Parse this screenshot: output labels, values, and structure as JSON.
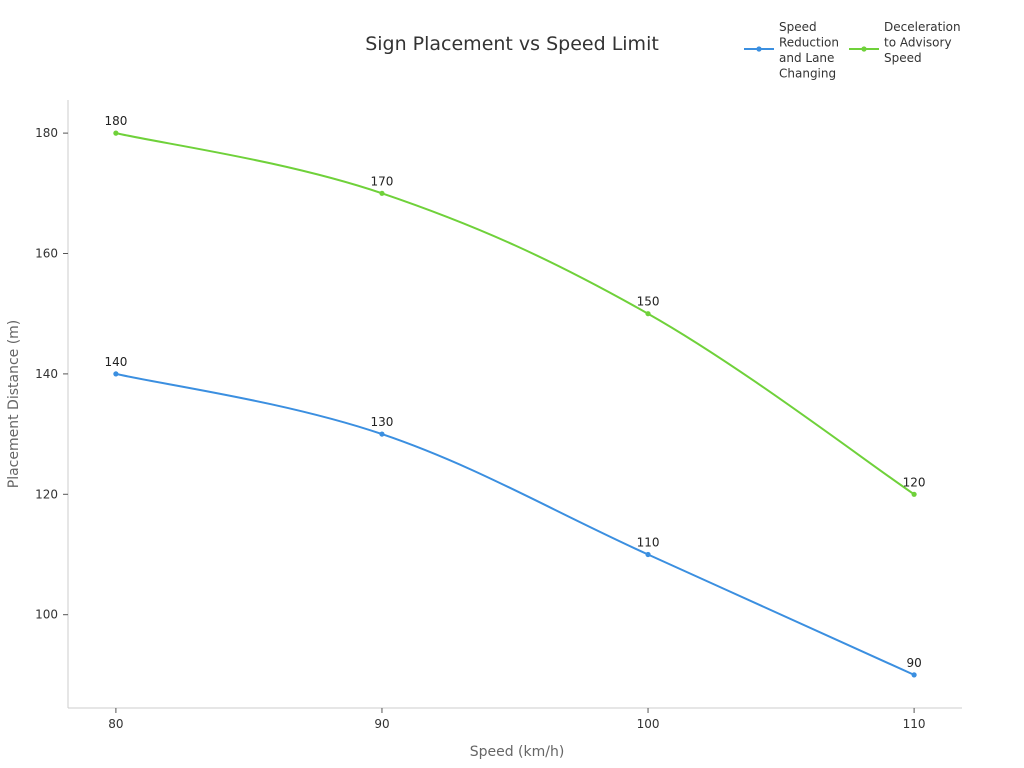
{
  "chart_data": {
    "type": "line",
    "title": "Sign Placement vs Speed Limit",
    "xlabel": "Speed (km/h)",
    "ylabel": "Placement Distance (m)",
    "x": [
      80,
      90,
      100,
      110
    ],
    "xticks": [
      "80",
      "90",
      "100",
      "110"
    ],
    "yticks": [
      100,
      120,
      140,
      160,
      180
    ],
    "xlim": [
      78.2,
      111.8
    ],
    "ylim": [
      84.5,
      185.5
    ],
    "grid": false,
    "legend_position": "top-right",
    "series": [
      {
        "name_lines": [
          "Speed",
          "Reduction",
          "and Lane",
          "Changing"
        ],
        "color": "#3b8fe0",
        "values": [
          140,
          130,
          110,
          90
        ],
        "labels": [
          "140",
          "130",
          "110",
          "90"
        ]
      },
      {
        "name_lines": [
          "Deceleration",
          "to Advisory",
          "Speed"
        ],
        "color": "#6fd13a",
        "values": [
          180,
          170,
          150,
          120
        ],
        "labels": [
          "180",
          "170",
          "150",
          "120"
        ]
      }
    ]
  }
}
